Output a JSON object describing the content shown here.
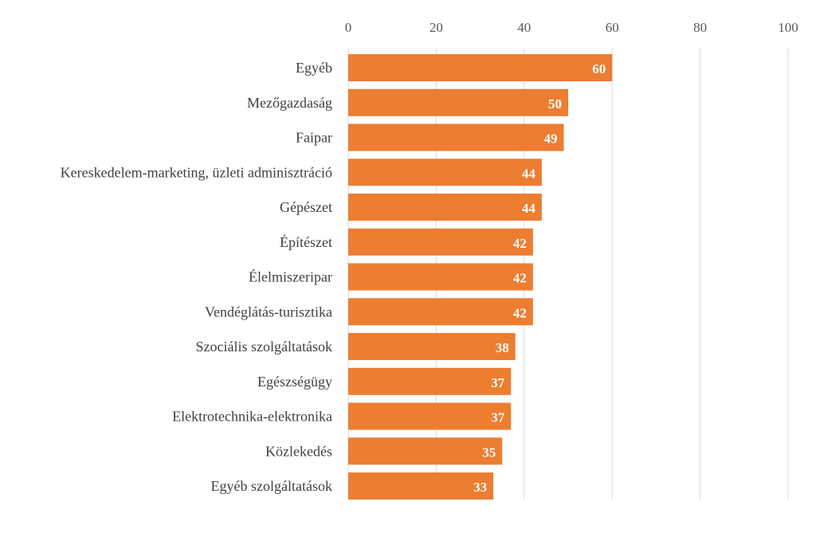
{
  "chart_data": {
    "type": "bar",
    "orientation": "horizontal",
    "categories": [
      "Egyéb",
      "Mezőgazdaság",
      "Faipar",
      "Kereskedelem-marketing, üzleti adminisztráció",
      "Gépészet",
      "Építészet",
      "Élelmiszeripar",
      "Vendéglátás-turisztika",
      "Szociális szolgáltatások",
      "Egészségügy",
      "Elektrotechnika-elektronika",
      "Közlekedés",
      "Egyéb szolgáltatások"
    ],
    "values": [
      60,
      50,
      49,
      44,
      44,
      42,
      42,
      42,
      38,
      37,
      37,
      35,
      33
    ],
    "value_labels": [
      "60",
      "50",
      "49",
      "44",
      "44",
      "42",
      "42",
      "42",
      "38",
      "37",
      "37",
      "35",
      "33"
    ],
    "xlim": [
      0,
      100
    ],
    "x_ticks": [
      0,
      20,
      40,
      60,
      80,
      100
    ],
    "x_tick_labels": [
      "0",
      "20",
      "40",
      "60",
      "80",
      "100"
    ],
    "x_axis_position": "top",
    "grid": true,
    "legend": "none",
    "bar_color": "#ED7D31",
    "grid_color": "#D9D9D9"
  }
}
